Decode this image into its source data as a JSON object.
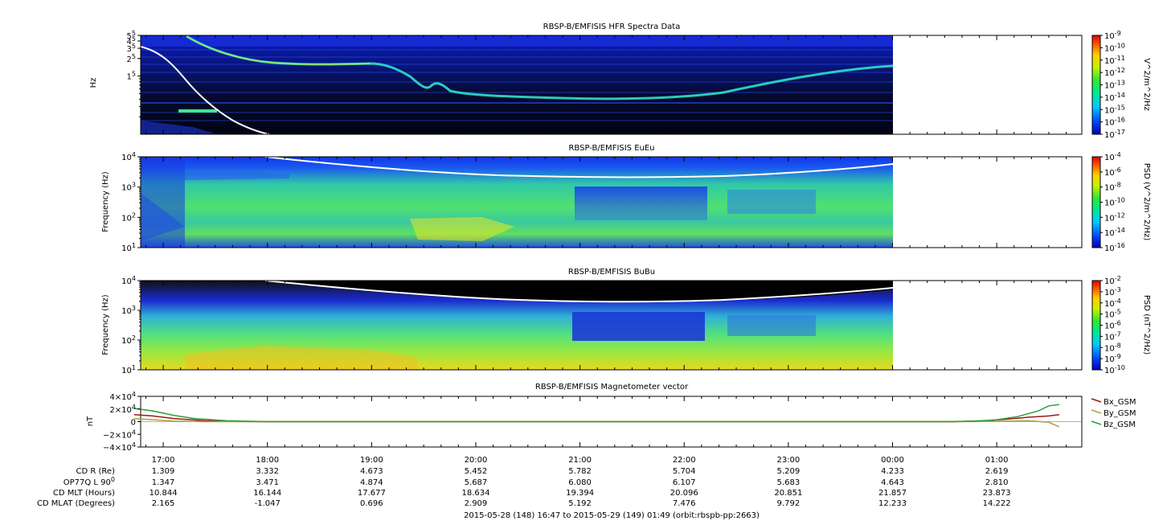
{
  "chart_data": [
    {
      "type": "heatmap",
      "title": "RBSP-B/EMFISIS  HFR Spectra Data",
      "ylabel": "Hz",
      "yscale": "log",
      "y_ticks": [
        {
          "v": 500000,
          "m": "5",
          "e": "5"
        },
        {
          "v": 400000,
          "m": "4",
          "e": "5"
        },
        {
          "v": 300000,
          "m": "3",
          "e": "5"
        },
        {
          "v": 200000,
          "m": "2",
          "e": "5"
        },
        {
          "v": 100000,
          "m": "1",
          "e": "5"
        }
      ],
      "ylim": [
        10000,
        500000
      ],
      "colorbar": {
        "label": "V^2/m^2/Hz",
        "scale": "log",
        "range": [
          1e-17,
          1e-09
        ],
        "ticks": [
          "-9",
          "-10",
          "-11",
          "-12",
          "-13",
          "-14",
          "-15",
          "-16",
          "-17"
        ]
      },
      "upper_hybrid_trace": [
        {
          "t": "16:55",
          "f": 250000
        },
        {
          "t": "17:30",
          "f": 220000
        },
        {
          "t": "18:00",
          "f": 180000
        },
        {
          "t": "18:30",
          "f": 160000
        },
        {
          "t": "19:00",
          "f": 160000
        },
        {
          "t": "19:30",
          "f": 130000
        },
        {
          "t": "20:00",
          "f": 40000
        },
        {
          "t": "20:30",
          "f": 38000
        },
        {
          "t": "21:00",
          "f": 36000
        },
        {
          "t": "22:00",
          "f": 38000
        },
        {
          "t": "23:00",
          "f": 60000
        },
        {
          "t": "23:30",
          "f": 100000
        },
        {
          "t": "00:00",
          "f": 150000
        }
      ]
    },
    {
      "type": "heatmap",
      "title": "RBSP-B/EMFISIS  EuEu",
      "ylabel": "Frequency (Hz)",
      "yscale": "log",
      "y_ticks": [
        {
          "v": 10000,
          "m": "10",
          "e": "4"
        },
        {
          "v": 1000,
          "m": "10",
          "e": "3"
        },
        {
          "v": 100,
          "m": "10",
          "e": "2"
        },
        {
          "v": 10,
          "m": "10",
          "e": "1"
        }
      ],
      "ylim": [
        10,
        10000
      ],
      "colorbar": {
        "label": "PSD (V^2/m^2/Hz)",
        "scale": "log",
        "range": [
          1e-16,
          0.0001
        ],
        "ticks": [
          "-4",
          "-6",
          "-8",
          "-10",
          "-12",
          "-14",
          "-16"
        ]
      }
    },
    {
      "type": "heatmap",
      "title": "RBSP-B/EMFISIS  BuBu",
      "ylabel": "Frequency (Hz)",
      "yscale": "log",
      "y_ticks": [
        {
          "v": 10000,
          "m": "10",
          "e": "4"
        },
        {
          "v": 1000,
          "m": "10",
          "e": "3"
        },
        {
          "v": 100,
          "m": "10",
          "e": "2"
        },
        {
          "v": 10,
          "m": "10",
          "e": "1"
        }
      ],
      "ylim": [
        10,
        10000
      ],
      "colorbar": {
        "label": "PSD (nT^2/Hz)",
        "scale": "log",
        "range": [
          1e-10,
          0.01
        ],
        "ticks": [
          "-2",
          "-3",
          "-4",
          "-5",
          "-6",
          "-7",
          "-8",
          "-9",
          "-10"
        ]
      }
    },
    {
      "type": "line",
      "title": "RBSP-B/EMFISIS  Magnetometer vector",
      "ylabel": "nT",
      "ylim": [
        -40000,
        40000
      ],
      "y_ticks": [
        {
          "v": 40000,
          "text": "4×10",
          "e": "4"
        },
        {
          "v": 20000,
          "text": "2×10",
          "e": "4"
        },
        {
          "v": 0,
          "text": "0",
          "e": ""
        },
        {
          "v": -20000,
          "text": "−2×10",
          "e": "4"
        },
        {
          "v": -40000,
          "text": "−4×10",
          "e": "4"
        }
      ],
      "series": [
        {
          "name": "Bx_GSM",
          "color": "#a01818",
          "points": [
            [
              16.72,
              11000
            ],
            [
              16.9,
              9000
            ],
            [
              17.1,
              5000
            ],
            [
              17.4,
              1500
            ],
            [
              17.7,
              300
            ],
            [
              18.0,
              0
            ],
            [
              24.6,
              0
            ],
            [
              24.9,
              1500
            ],
            [
              25.1,
              4000
            ],
            [
              25.3,
              7000
            ],
            [
              25.5,
              9000
            ],
            [
              25.6,
              11000
            ]
          ]
        },
        {
          "name": "By_GSM",
          "color": "#b0a040",
          "points": [
            [
              16.72,
              5000
            ],
            [
              16.9,
              3000
            ],
            [
              17.1,
              1000
            ],
            [
              17.4,
              0
            ],
            [
              18.0,
              0
            ],
            [
              24.6,
              0
            ],
            [
              25.0,
              500
            ],
            [
              25.3,
              1500
            ],
            [
              25.5,
              -1000
            ],
            [
              25.6,
              -8000
            ]
          ]
        },
        {
          "name": "Bz_GSM",
          "color": "#28a03c",
          "points": [
            [
              16.72,
              21000
            ],
            [
              16.9,
              17000
            ],
            [
              17.1,
              10000
            ],
            [
              17.3,
              5000
            ],
            [
              17.6,
              1500
            ],
            [
              18.0,
              0
            ],
            [
              24.5,
              0
            ],
            [
              24.8,
              1000
            ],
            [
              25.0,
              3000
            ],
            [
              25.2,
              8000
            ],
            [
              25.4,
              17000
            ],
            [
              25.5,
              25000
            ],
            [
              25.6,
              27000
            ]
          ]
        }
      ]
    }
  ],
  "time_axis": {
    "start_hour": 16.7833,
    "end_hour": 25.8167,
    "data_end_hour": 24.0,
    "labels": [
      "17:00",
      "18:00",
      "19:00",
      "20:00",
      "21:00",
      "22:00",
      "23:00",
      "00:00",
      "01:00"
    ],
    "label_hours": [
      17,
      18,
      19,
      20,
      21,
      22,
      23,
      24,
      25
    ]
  },
  "ephemeris": {
    "rows": [
      {
        "label": "CD R (Re)",
        "values": [
          "1.309",
          "3.332",
          "4.673",
          "5.452",
          "5.782",
          "5.704",
          "5.209",
          "4.233",
          "2.619"
        ]
      },
      {
        "label": "OP77Q L 90",
        "sup": "0",
        "values": [
          "1.347",
          "3.471",
          "4.874",
          "5.687",
          "6.080",
          "6.107",
          "5.683",
          "4.643",
          "2.810"
        ]
      },
      {
        "label": "CD MLT (Hours)",
        "values": [
          "10.844",
          "16.144",
          "17.677",
          "18.634",
          "19.394",
          "20.096",
          "20.851",
          "21.857",
          "23.873"
        ]
      },
      {
        "label": "CD MLAT (Degrees)",
        "values": [
          "2.165",
          "-1.047",
          "0.696",
          "2.909",
          "5.192",
          "7.476",
          "9.792",
          "12.233",
          "14.222"
        ]
      }
    ]
  },
  "footer": "2015-05-28 (148) 16:47 to 2015-05-29 (149) 01:49 (orbit:rbspb-pp:2663)"
}
